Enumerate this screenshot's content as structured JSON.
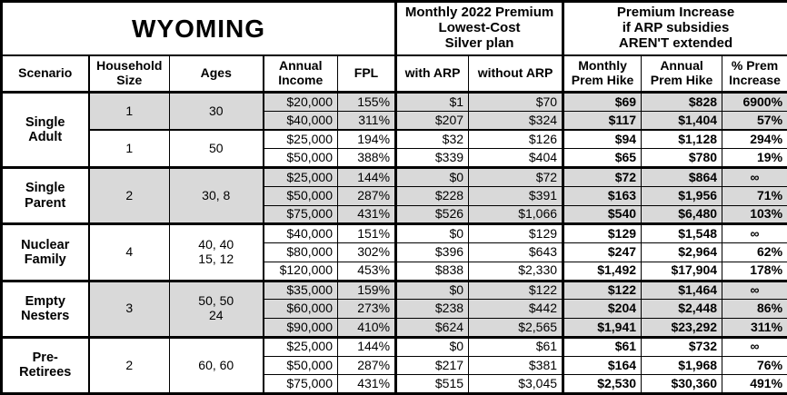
{
  "title": "WYOMING",
  "header": {
    "premium_group": "Monthly 2022 Premium\nLowest-Cost\nSilver plan",
    "increase_group": "Premium Increase\nif ARP subsidies\nAREN'T extended",
    "columns": [
      "Scenario",
      "Household\nSize",
      "Ages",
      "Annual\nIncome",
      "FPL",
      "with ARP",
      "without ARP",
      "Monthly\nPrem Hike",
      "Annual\nPrem Hike",
      "% Prem\nIncrease"
    ]
  },
  "colors": {
    "shaded_row": "#d9d9d9",
    "border": "#000000",
    "background": "#ffffff",
    "text": "#000000"
  },
  "table": {
    "groups": [
      {
        "scenario": "Single\nAdult",
        "subgroups": [
          {
            "household_size": "1",
            "ages": "30",
            "shaded": true,
            "rows": [
              {
                "income": "$20,000",
                "fpl": "155%",
                "with_arp": "$1",
                "without_arp": "$70",
                "monthly_hike": "$69",
                "annual_hike": "$828",
                "pct_increase": "6900%"
              },
              {
                "income": "$40,000",
                "fpl": "311%",
                "with_arp": "$207",
                "without_arp": "$324",
                "monthly_hike": "$117",
                "annual_hike": "$1,404",
                "pct_increase": "57%"
              }
            ]
          },
          {
            "household_size": "1",
            "ages": "50",
            "shaded": false,
            "rows": [
              {
                "income": "$25,000",
                "fpl": "194%",
                "with_arp": "$32",
                "without_arp": "$126",
                "monthly_hike": "$94",
                "annual_hike": "$1,128",
                "pct_increase": "294%"
              },
              {
                "income": "$50,000",
                "fpl": "388%",
                "with_arp": "$339",
                "without_arp": "$404",
                "monthly_hike": "$65",
                "annual_hike": "$780",
                "pct_increase": "19%"
              }
            ]
          }
        ]
      },
      {
        "scenario": "Single\nParent",
        "subgroups": [
          {
            "household_size": "2",
            "ages": "30, 8",
            "shaded": true,
            "rows": [
              {
                "income": "$25,000",
                "fpl": "144%",
                "with_arp": "$0",
                "without_arp": "$72",
                "monthly_hike": "$72",
                "annual_hike": "$864",
                "pct_increase": "∞"
              },
              {
                "income": "$50,000",
                "fpl": "287%",
                "with_arp": "$228",
                "without_arp": "$391",
                "monthly_hike": "$163",
                "annual_hike": "$1,956",
                "pct_increase": "71%"
              },
              {
                "income": "$75,000",
                "fpl": "431%",
                "with_arp": "$526",
                "without_arp": "$1,066",
                "monthly_hike": "$540",
                "annual_hike": "$6,480",
                "pct_increase": "103%"
              }
            ]
          }
        ]
      },
      {
        "scenario": "Nuclear\nFamily",
        "subgroups": [
          {
            "household_size": "4",
            "ages": "40, 40\n15, 12",
            "shaded": false,
            "rows": [
              {
                "income": "$40,000",
                "fpl": "151%",
                "with_arp": "$0",
                "without_arp": "$129",
                "monthly_hike": "$129",
                "annual_hike": "$1,548",
                "pct_increase": "∞"
              },
              {
                "income": "$80,000",
                "fpl": "302%",
                "with_arp": "$396",
                "without_arp": "$643",
                "monthly_hike": "$247",
                "annual_hike": "$2,964",
                "pct_increase": "62%"
              },
              {
                "income": "$120,000",
                "fpl": "453%",
                "with_arp": "$838",
                "without_arp": "$2,330",
                "monthly_hike": "$1,492",
                "annual_hike": "$17,904",
                "pct_increase": "178%"
              }
            ]
          }
        ]
      },
      {
        "scenario": "Empty\nNesters",
        "subgroups": [
          {
            "household_size": "3",
            "ages": "50, 50\n24",
            "shaded": true,
            "rows": [
              {
                "income": "$35,000",
                "fpl": "159%",
                "with_arp": "$0",
                "without_arp": "$122",
                "monthly_hike": "$122",
                "annual_hike": "$1,464",
                "pct_increase": "∞"
              },
              {
                "income": "$60,000",
                "fpl": "273%",
                "with_arp": "$238",
                "without_arp": "$442",
                "monthly_hike": "$204",
                "annual_hike": "$2,448",
                "pct_increase": "86%"
              },
              {
                "income": "$90,000",
                "fpl": "410%",
                "with_arp": "$624",
                "without_arp": "$2,565",
                "monthly_hike": "$1,941",
                "annual_hike": "$23,292",
                "pct_increase": "311%"
              }
            ]
          }
        ]
      },
      {
        "scenario": "Pre-\nRetirees",
        "subgroups": [
          {
            "household_size": "2",
            "ages": "60, 60",
            "shaded": false,
            "rows": [
              {
                "income": "$25,000",
                "fpl": "144%",
                "with_arp": "$0",
                "without_arp": "$61",
                "monthly_hike": "$61",
                "annual_hike": "$732",
                "pct_increase": "∞"
              },
              {
                "income": "$50,000",
                "fpl": "287%",
                "with_arp": "$217",
                "without_arp": "$381",
                "monthly_hike": "$164",
                "annual_hike": "$1,968",
                "pct_increase": "76%"
              },
              {
                "income": "$75,000",
                "fpl": "431%",
                "with_arp": "$515",
                "without_arp": "$3,045",
                "monthly_hike": "$2,530",
                "annual_hike": "$30,360",
                "pct_increase": "491%"
              }
            ]
          }
        ]
      }
    ]
  },
  "chart_data": {
    "type": "table",
    "title": "WYOMING",
    "column_groups": [
      "Monthly 2022 Premium Lowest-Cost Silver plan",
      "Premium Increase if ARP subsidies AREN'T extended"
    ],
    "columns": [
      "Scenario",
      "Household Size",
      "Ages",
      "Annual Income",
      "FPL",
      "with ARP",
      "without ARP",
      "Monthly Prem Hike",
      "Annual Prem Hike",
      "% Prem Increase"
    ],
    "rows": [
      [
        "Single Adult",
        "1",
        "30",
        "$20,000",
        "155%",
        "$1",
        "$70",
        "$69",
        "$828",
        "6900%"
      ],
      [
        "Single Adult",
        "1",
        "30",
        "$40,000",
        "311%",
        "$207",
        "$324",
        "$117",
        "$1,404",
        "57%"
      ],
      [
        "Single Adult",
        "1",
        "50",
        "$25,000",
        "194%",
        "$32",
        "$126",
        "$94",
        "$1,128",
        "294%"
      ],
      [
        "Single Adult",
        "1",
        "50",
        "$50,000",
        "388%",
        "$339",
        "$404",
        "$65",
        "$780",
        "19%"
      ],
      [
        "Single Parent",
        "2",
        "30, 8",
        "$25,000",
        "144%",
        "$0",
        "$72",
        "$72",
        "$864",
        "∞"
      ],
      [
        "Single Parent",
        "2",
        "30, 8",
        "$50,000",
        "287%",
        "$228",
        "$391",
        "$163",
        "$1,956",
        "71%"
      ],
      [
        "Single Parent",
        "2",
        "30, 8",
        "$75,000",
        "431%",
        "$526",
        "$1,066",
        "$540",
        "$6,480",
        "103%"
      ],
      [
        "Nuclear Family",
        "4",
        "40, 40, 15, 12",
        "$40,000",
        "151%",
        "$0",
        "$129",
        "$129",
        "$1,548",
        "∞"
      ],
      [
        "Nuclear Family",
        "4",
        "40, 40, 15, 12",
        "$80,000",
        "302%",
        "$396",
        "$643",
        "$247",
        "$2,964",
        "62%"
      ],
      [
        "Nuclear Family",
        "4",
        "40, 40, 15, 12",
        "$120,000",
        "453%",
        "$838",
        "$2,330",
        "$1,492",
        "$17,904",
        "178%"
      ],
      [
        "Empty Nesters",
        "3",
        "50, 50, 24",
        "$35,000",
        "159%",
        "$0",
        "$122",
        "$122",
        "$1,464",
        "∞"
      ],
      [
        "Empty Nesters",
        "3",
        "50, 50, 24",
        "$60,000",
        "273%",
        "$238",
        "$442",
        "$204",
        "$2,448",
        "86%"
      ],
      [
        "Empty Nesters",
        "3",
        "50, 50, 24",
        "$90,000",
        "410%",
        "$624",
        "$2,565",
        "$1,941",
        "$23,292",
        "311%"
      ],
      [
        "Pre-Retirees",
        "2",
        "60, 60",
        "$25,000",
        "144%",
        "$0",
        "$61",
        "$61",
        "$732",
        "∞"
      ],
      [
        "Pre-Retirees",
        "2",
        "60, 60",
        "$50,000",
        "287%",
        "$217",
        "$381",
        "$164",
        "$1,968",
        "76%"
      ],
      [
        "Pre-Retirees",
        "2",
        "60, 60",
        "$75,000",
        "431%",
        "$515",
        "$3,045",
        "$2,530",
        "$30,360",
        "491%"
      ]
    ]
  }
}
